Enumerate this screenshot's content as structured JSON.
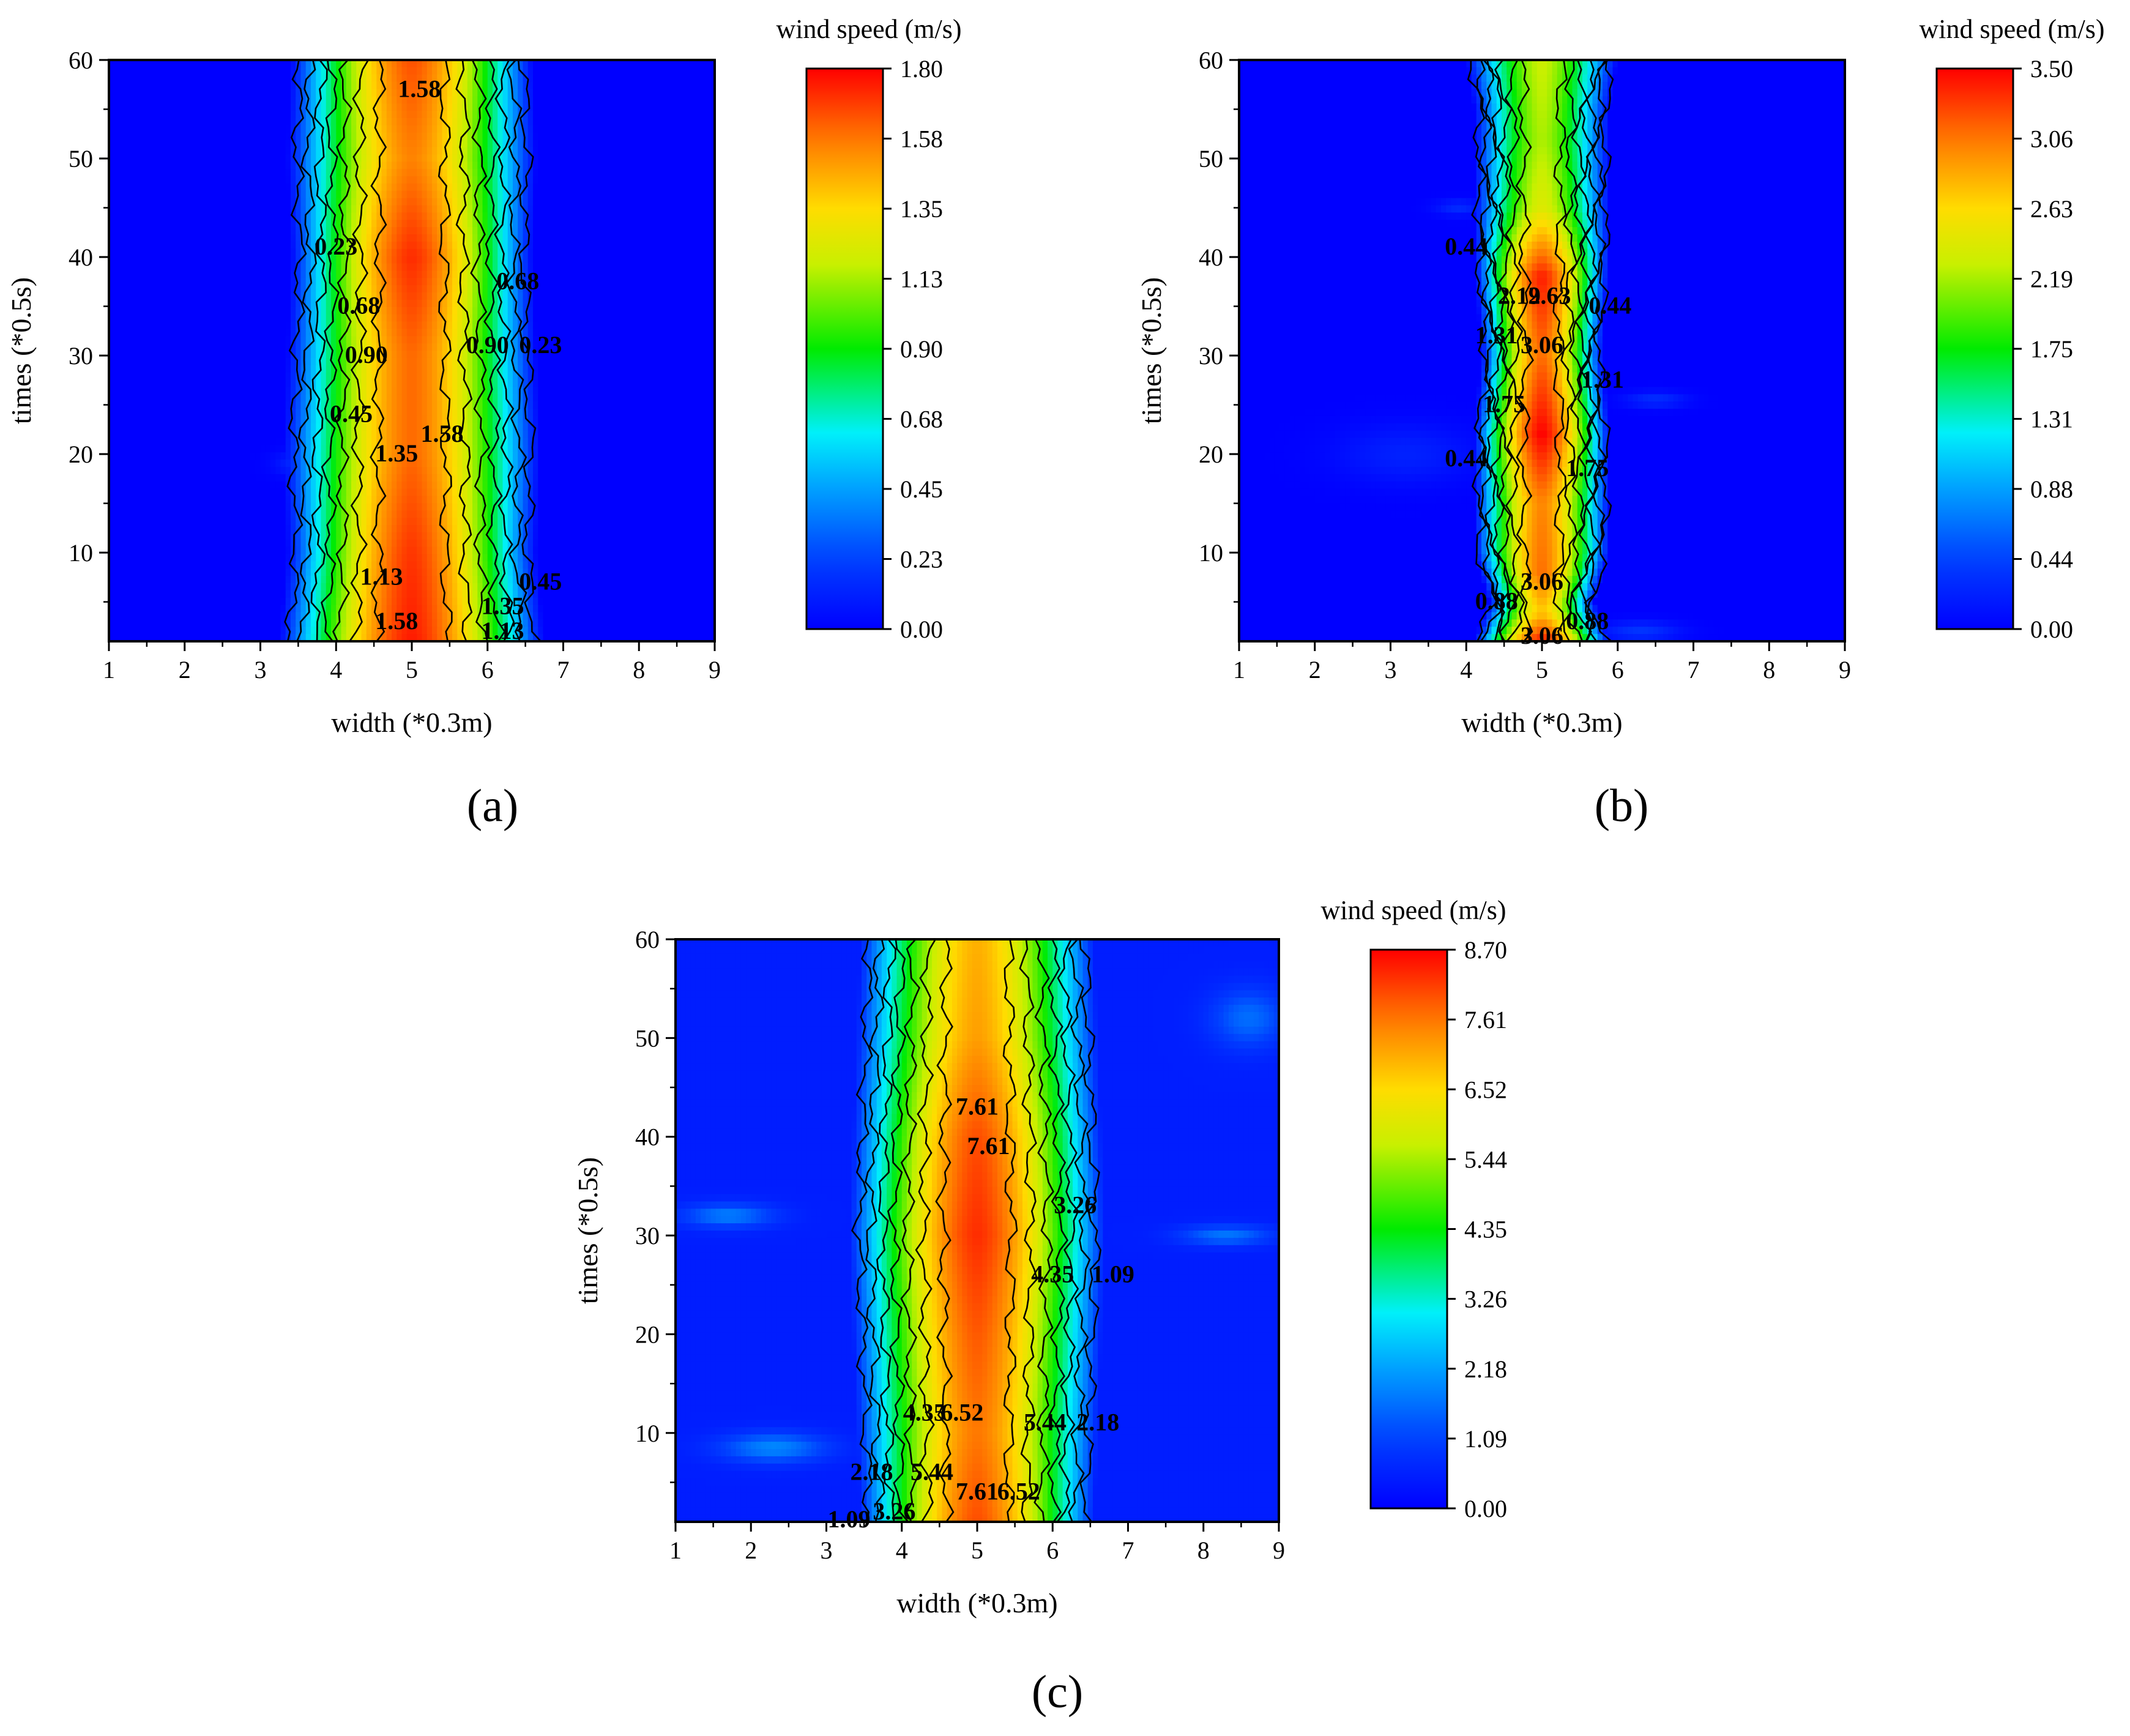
{
  "figure": {
    "panel_captions": [
      "(a)",
      "(b)",
      "(c)"
    ]
  },
  "chart_data": [
    {
      "id": "a",
      "type": "heatmap",
      "caption": "(a)",
      "xlabel": "width (*0.3m)",
      "ylabel": "times (*0.5s)",
      "xlim": [
        1,
        9
      ],
      "ylim": [
        1,
        60
      ],
      "xticks": [
        1,
        2,
        3,
        4,
        5,
        6,
        7,
        8,
        9
      ],
      "yticks": [
        10,
        20,
        30,
        40,
        50,
        60
      ],
      "colorbar": {
        "title": "wind speed (m/s)",
        "min": 0.0,
        "max": 1.8,
        "ticks": [
          "1.80",
          "1.58",
          "1.35",
          "1.13",
          "0.90",
          "0.68",
          "0.45",
          "0.23",
          "0.00"
        ]
      },
      "center_x": 5.0,
      "peak": 1.75,
      "half_width": [
        [
          1,
          1.75
        ],
        [
          10,
          1.65
        ],
        [
          20,
          1.7
        ],
        [
          40,
          1.6
        ],
        [
          50,
          1.65
        ],
        [
          60,
          1.6
        ]
      ],
      "peak_profile": [
        [
          1,
          1.75
        ],
        [
          10,
          1.7
        ],
        [
          20,
          1.6
        ],
        [
          30,
          1.6
        ],
        [
          40,
          1.72
        ],
        [
          50,
          1.55
        ],
        [
          60,
          1.65
        ]
      ],
      "blobs": [
        {
          "x": 3.6,
          "y": 19,
          "sx": 0.35,
          "sy": 1.2,
          "v": 0.2
        }
      ],
      "contour_labels": [
        {
          "text": "1.58",
          "x": 5.1,
          "y": 57
        },
        {
          "text": "0.23",
          "x": 4.0,
          "y": 41
        },
        {
          "text": "0.68",
          "x": 6.4,
          "y": 37.5
        },
        {
          "text": "0.68",
          "x": 4.3,
          "y": 35
        },
        {
          "text": "0.90",
          "x": 6.0,
          "y": 31
        },
        {
          "text": "0.23",
          "x": 6.7,
          "y": 31
        },
        {
          "text": "0.90",
          "x": 4.4,
          "y": 30
        },
        {
          "text": "0.45",
          "x": 4.2,
          "y": 24
        },
        {
          "text": "1.58",
          "x": 5.4,
          "y": 22
        },
        {
          "text": "1.35",
          "x": 4.8,
          "y": 20
        },
        {
          "text": "1.13",
          "x": 4.6,
          "y": 7.5
        },
        {
          "text": "0.45",
          "x": 6.7,
          "y": 7
        },
        {
          "text": "1.35",
          "x": 6.2,
          "y": 4.5
        },
        {
          "text": "1.58",
          "x": 4.8,
          "y": 3
        },
        {
          "text": "1.13",
          "x": 6.2,
          "y": 2
        }
      ]
    },
    {
      "id": "b",
      "type": "heatmap",
      "caption": "(b)",
      "xlabel": "width (*0.3m)",
      "ylabel": "times (*0.5s)",
      "xlim": [
        1,
        9
      ],
      "ylim": [
        1,
        60
      ],
      "xticks": [
        1,
        2,
        3,
        4,
        5,
        6,
        7,
        8,
        9
      ],
      "yticks": [
        10,
        20,
        30,
        40,
        50,
        60
      ],
      "colorbar": {
        "title": "wind speed (m/s)",
        "min": 0.0,
        "max": 3.5,
        "ticks": [
          "3.50",
          "3.06",
          "2.63",
          "2.19",
          "1.75",
          "1.31",
          "0.88",
          "0.44",
          "0.00"
        ]
      },
      "center_x": 5.0,
      "peak": 3.3,
      "half_width": [
        [
          1,
          0.9
        ],
        [
          5,
          0.7
        ],
        [
          10,
          0.9
        ],
        [
          22,
          0.9
        ],
        [
          30,
          0.8
        ],
        [
          40,
          0.9
        ],
        [
          55,
          0.9
        ],
        [
          60,
          1.0
        ]
      ],
      "peak_profile": [
        [
          1,
          3.4
        ],
        [
          4,
          2.7
        ],
        [
          8,
          3.1
        ],
        [
          15,
          3.0
        ],
        [
          22,
          3.5
        ],
        [
          30,
          3.1
        ],
        [
          38,
          3.4
        ],
        [
          45,
          2.4
        ],
        [
          52,
          2.2
        ],
        [
          60,
          2.3
        ]
      ],
      "blobs": [
        {
          "x": 3.2,
          "y": 20,
          "sx": 0.9,
          "sy": 3.0,
          "v": 0.22
        },
        {
          "x": 6.5,
          "y": 25.5,
          "sx": 0.4,
          "sy": 0.8,
          "v": 0.3
        },
        {
          "x": 3.9,
          "y": 45,
          "sx": 0.3,
          "sy": 0.8,
          "v": 0.28
        },
        {
          "x": 6.3,
          "y": 2,
          "sx": 0.5,
          "sy": 1.0,
          "v": 0.35
        }
      ],
      "contour_labels": [
        {
          "text": "0.44",
          "x": 4.0,
          "y": 41
        },
        {
          "text": "2.19",
          "x": 4.7,
          "y": 36
        },
        {
          "text": "2.63",
          "x": 5.1,
          "y": 36
        },
        {
          "text": "0.44",
          "x": 5.9,
          "y": 35
        },
        {
          "text": "1.31",
          "x": 4.4,
          "y": 32
        },
        {
          "text": "3.06",
          "x": 5.0,
          "y": 31
        },
        {
          "text": "1.31",
          "x": 5.8,
          "y": 27.5
        },
        {
          "text": "1.75",
          "x": 4.5,
          "y": 25
        },
        {
          "text": "1.75",
          "x": 5.6,
          "y": 18.5
        },
        {
          "text": "0.44",
          "x": 4.0,
          "y": 19.5
        },
        {
          "text": "3.06",
          "x": 5.0,
          "y": 7
        },
        {
          "text": "0.88",
          "x": 4.4,
          "y": 5
        },
        {
          "text": "0.88",
          "x": 5.6,
          "y": 3
        },
        {
          "text": "3.06",
          "x": 5.0,
          "y": 1.5
        }
      ]
    },
    {
      "id": "c",
      "type": "heatmap",
      "caption": "(c)",
      "xlabel": "width (*0.3m)",
      "ylabel": "times (*0.5s)",
      "xlim": [
        1,
        9
      ],
      "ylim": [
        1,
        60
      ],
      "xticks": [
        1,
        2,
        3,
        4,
        5,
        6,
        7,
        8,
        9
      ],
      "yticks": [
        10,
        20,
        30,
        40,
        50,
        60
      ],
      "colorbar": {
        "title": "wind speed (m/s)",
        "min": 0.0,
        "max": 8.7,
        "ticks": [
          "8.70",
          "7.61",
          "6.52",
          "5.44",
          "4.35",
          "3.26",
          "2.18",
          "1.09",
          "0.00"
        ]
      },
      "center_x": 5.0,
      "peak": 7.8,
      "floor": 0.5,
      "half_width": [
        [
          1,
          1.55
        ],
        [
          10,
          1.6
        ],
        [
          20,
          1.65
        ],
        [
          30,
          1.7
        ],
        [
          40,
          1.65
        ],
        [
          50,
          1.6
        ],
        [
          60,
          1.55
        ]
      ],
      "peak_profile": [
        [
          1,
          8.0
        ],
        [
          10,
          7.6
        ],
        [
          20,
          7.9
        ],
        [
          30,
          8.3
        ],
        [
          40,
          8.0
        ],
        [
          50,
          7.2
        ],
        [
          60,
          7.0
        ]
      ],
      "blobs": [
        {
          "x": 2.3,
          "y": 8.5,
          "sx": 0.7,
          "sy": 1.5,
          "v": 1.4
        },
        {
          "x": 1.7,
          "y": 32,
          "sx": 0.6,
          "sy": 1.2,
          "v": 1.3
        },
        {
          "x": 8.3,
          "y": 30,
          "sx": 0.6,
          "sy": 1.0,
          "v": 1.2
        },
        {
          "x": 8.6,
          "y": 52,
          "sx": 0.5,
          "sy": 3.0,
          "v": 1.1
        }
      ],
      "contour_labels": [
        {
          "text": "7.61",
          "x": 5.0,
          "y": 43
        },
        {
          "text": "7.61",
          "x": 5.15,
          "y": 39
        },
        {
          "text": "3.26",
          "x": 6.3,
          "y": 33
        },
        {
          "text": "4.35",
          "x": 6.0,
          "y": 26
        },
        {
          "text": "1.09",
          "x": 6.8,
          "y": 26
        },
        {
          "text": "4.35",
          "x": 4.3,
          "y": 12
        },
        {
          "text": "6.52",
          "x": 4.8,
          "y": 12
        },
        {
          "text": "5.44",
          "x": 5.9,
          "y": 11
        },
        {
          "text": "2.18",
          "x": 6.6,
          "y": 11
        },
        {
          "text": "2.18",
          "x": 3.6,
          "y": 6
        },
        {
          "text": "5.44",
          "x": 4.4,
          "y": 6
        },
        {
          "text": "7.61",
          "x": 5.0,
          "y": 4
        },
        {
          "text": "6.52",
          "x": 5.55,
          "y": 4
        },
        {
          "text": "1.09",
          "x": 3.3,
          "y": 1.2
        },
        {
          "text": "3.26",
          "x": 3.9,
          "y": 2
        }
      ]
    }
  ]
}
